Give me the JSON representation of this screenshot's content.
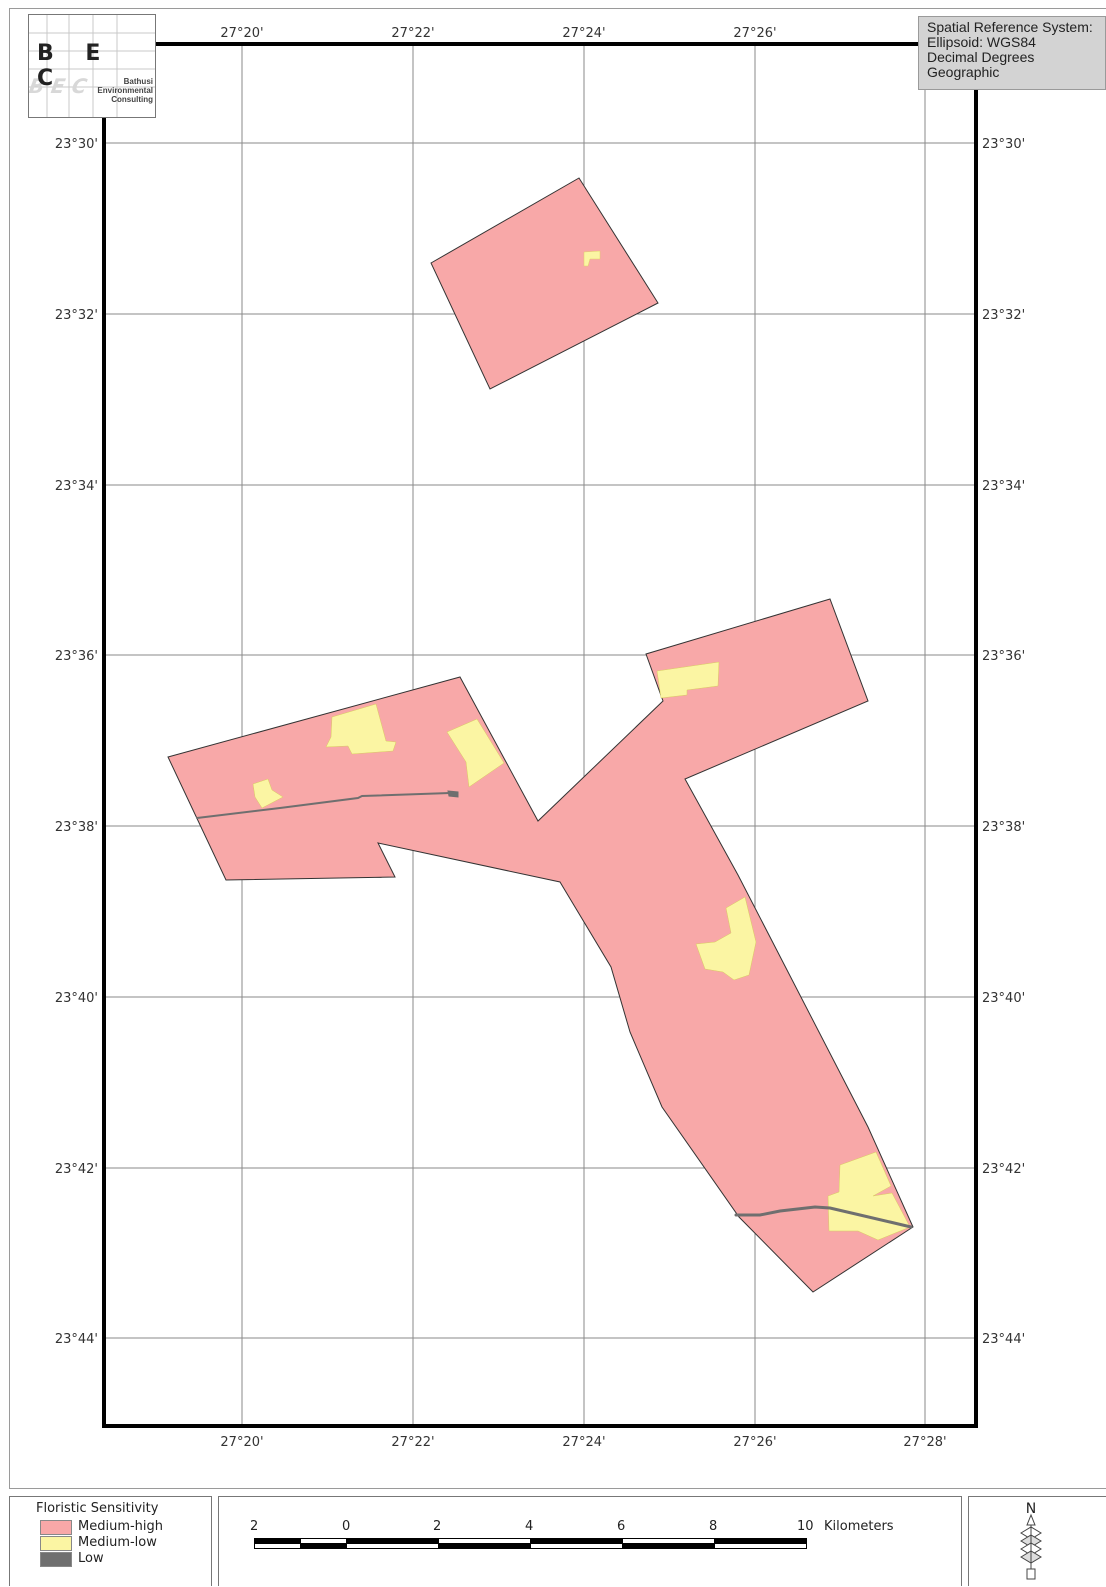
{
  "srs": {
    "lines": [
      "Spatial Reference System:",
      "Ellipsoid: WGS84",
      "Decimal Degrees",
      "Geographic"
    ]
  },
  "logo": {
    "letters": "B E C",
    "lines": [
      "Bathusi",
      "Environmental",
      "Consulting"
    ]
  },
  "grid": {
    "lon_labels": [
      "27°20'",
      "27°22'",
      "27°24'",
      "27°26'",
      "27°28'"
    ],
    "lat_labels": [
      "23°30'",
      "23°32'",
      "23°34'",
      "23°36'",
      "23°38'",
      "23°40'",
      "23°42'",
      "23°44'"
    ]
  },
  "legend": {
    "title": "Floristic Sensitivity",
    "items": [
      {
        "label": "Medium-high",
        "color": "#f8a8a8"
      },
      {
        "label": "Medium-low",
        "color": "#fbf5a3"
      },
      {
        "label": "Low",
        "color": "#6f6f6f"
      }
    ]
  },
  "scalebar": {
    "labels": [
      "2",
      "0",
      "2",
      "4",
      "6",
      "8",
      "10"
    ],
    "unit": "Kilometers"
  },
  "north": {
    "label": "N"
  },
  "colors": {
    "medium_high": "#f8a8a8",
    "medium_low": "#fbf5a3",
    "low": "#6f6f6f",
    "frame": "#000000",
    "grid": "#888888"
  }
}
